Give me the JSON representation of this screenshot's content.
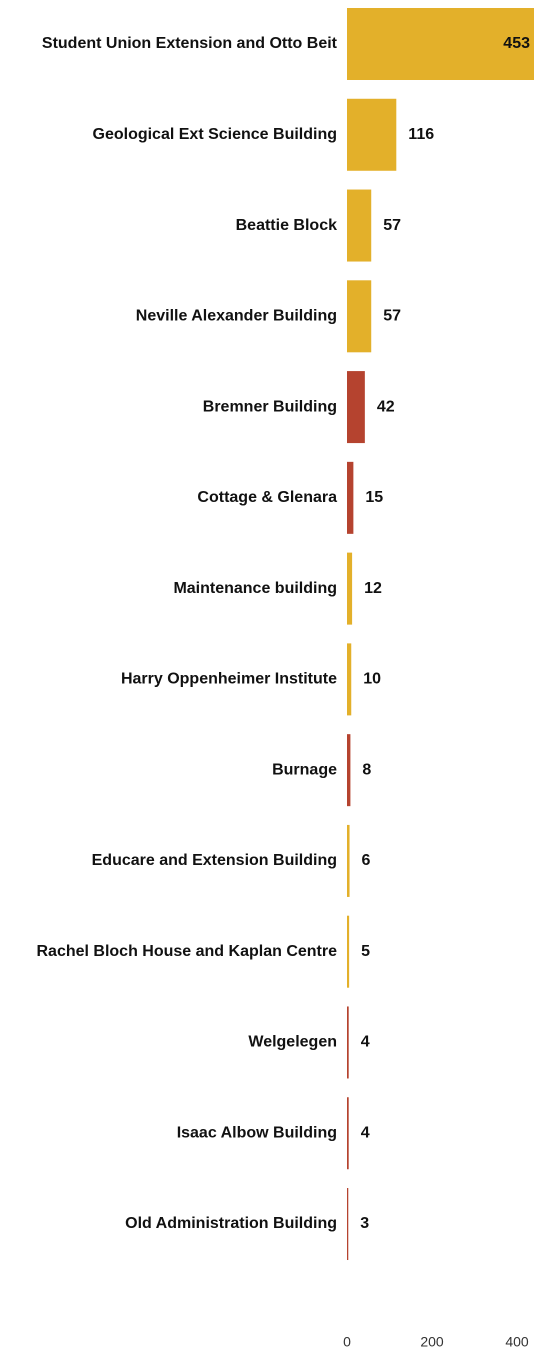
{
  "chart_data": {
    "type": "barh",
    "categories": [
      "Student Union Extension and Otto Beit",
      "Geological Ext Science Building",
      "Beattie Block",
      "Neville Alexander Building",
      "Bremner Building",
      "Cottage & Glenara",
      "Maintenance building",
      "Harry Oppenheimer Institute",
      "Burnage",
      "Educare and Extension Building",
      "Rachel Bloch House and Kaplan Centre",
      "Welgelegen",
      "Isaac Albow Building",
      "Old Administration Building"
    ],
    "values": [
      453,
      116,
      57,
      57,
      42,
      15,
      12,
      10,
      8,
      6,
      5,
      4,
      4,
      3
    ],
    "colors": [
      "#e3b02a",
      "#e3b02a",
      "#e3b02a",
      "#e3b02a",
      "#b5432f",
      "#b5432f",
      "#e3b02a",
      "#e3b02a",
      "#b5432f",
      "#e3b02a",
      "#e3b02a",
      "#b5432f",
      "#b5432f",
      "#b5432f"
    ],
    "xlim": [
      0,
      440
    ],
    "xticks": [
      0,
      200,
      400
    ]
  }
}
